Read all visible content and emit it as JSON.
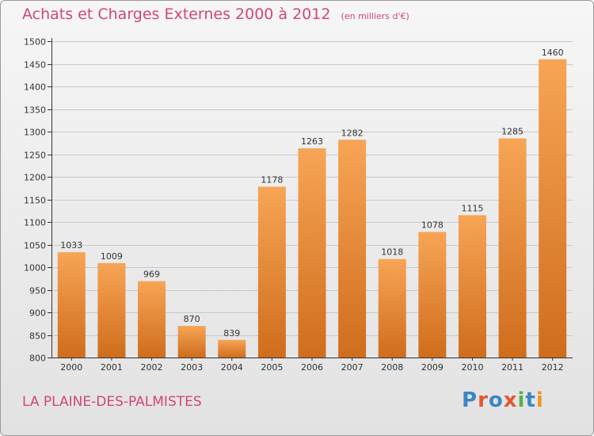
{
  "title": "Achats et Charges Externes 2000 à 2012",
  "subtitle": "(en milliers d'€)",
  "place": "LA PLAINE-DES-PALMISTES",
  "logo": {
    "text": "Proxiti",
    "letter_colors": [
      "#3b86c6",
      "#e4572e",
      "#3b86c6",
      "#e4572e",
      "#57b04b",
      "#3b86c6",
      "#e89a22"
    ]
  },
  "colors": {
    "title": "#d2486f",
    "bar_top": "#f7a556",
    "bar_bottom": "#cf6d1c",
    "axis": "#333333",
    "grid": "#c8c8c8"
  },
  "chart_data": {
    "type": "bar",
    "title": "Achats et Charges Externes 2000 à 2012",
    "subtitle": "(en milliers d'€)",
    "categories": [
      "2000",
      "2001",
      "2002",
      "2003",
      "2004",
      "2005",
      "2006",
      "2007",
      "2008",
      "2009",
      "2010",
      "2011",
      "2012"
    ],
    "values": [
      1033,
      1009,
      969,
      870,
      839,
      1178,
      1263,
      1282,
      1018,
      1078,
      1115,
      1285,
      1460
    ],
    "ylim": [
      800,
      1500
    ],
    "yticks": [
      800,
      850,
      900,
      950,
      1000,
      1050,
      1100,
      1150,
      1200,
      1250,
      1300,
      1350,
      1400,
      1450,
      1500
    ],
    "grid": true,
    "data_labels": true
  }
}
